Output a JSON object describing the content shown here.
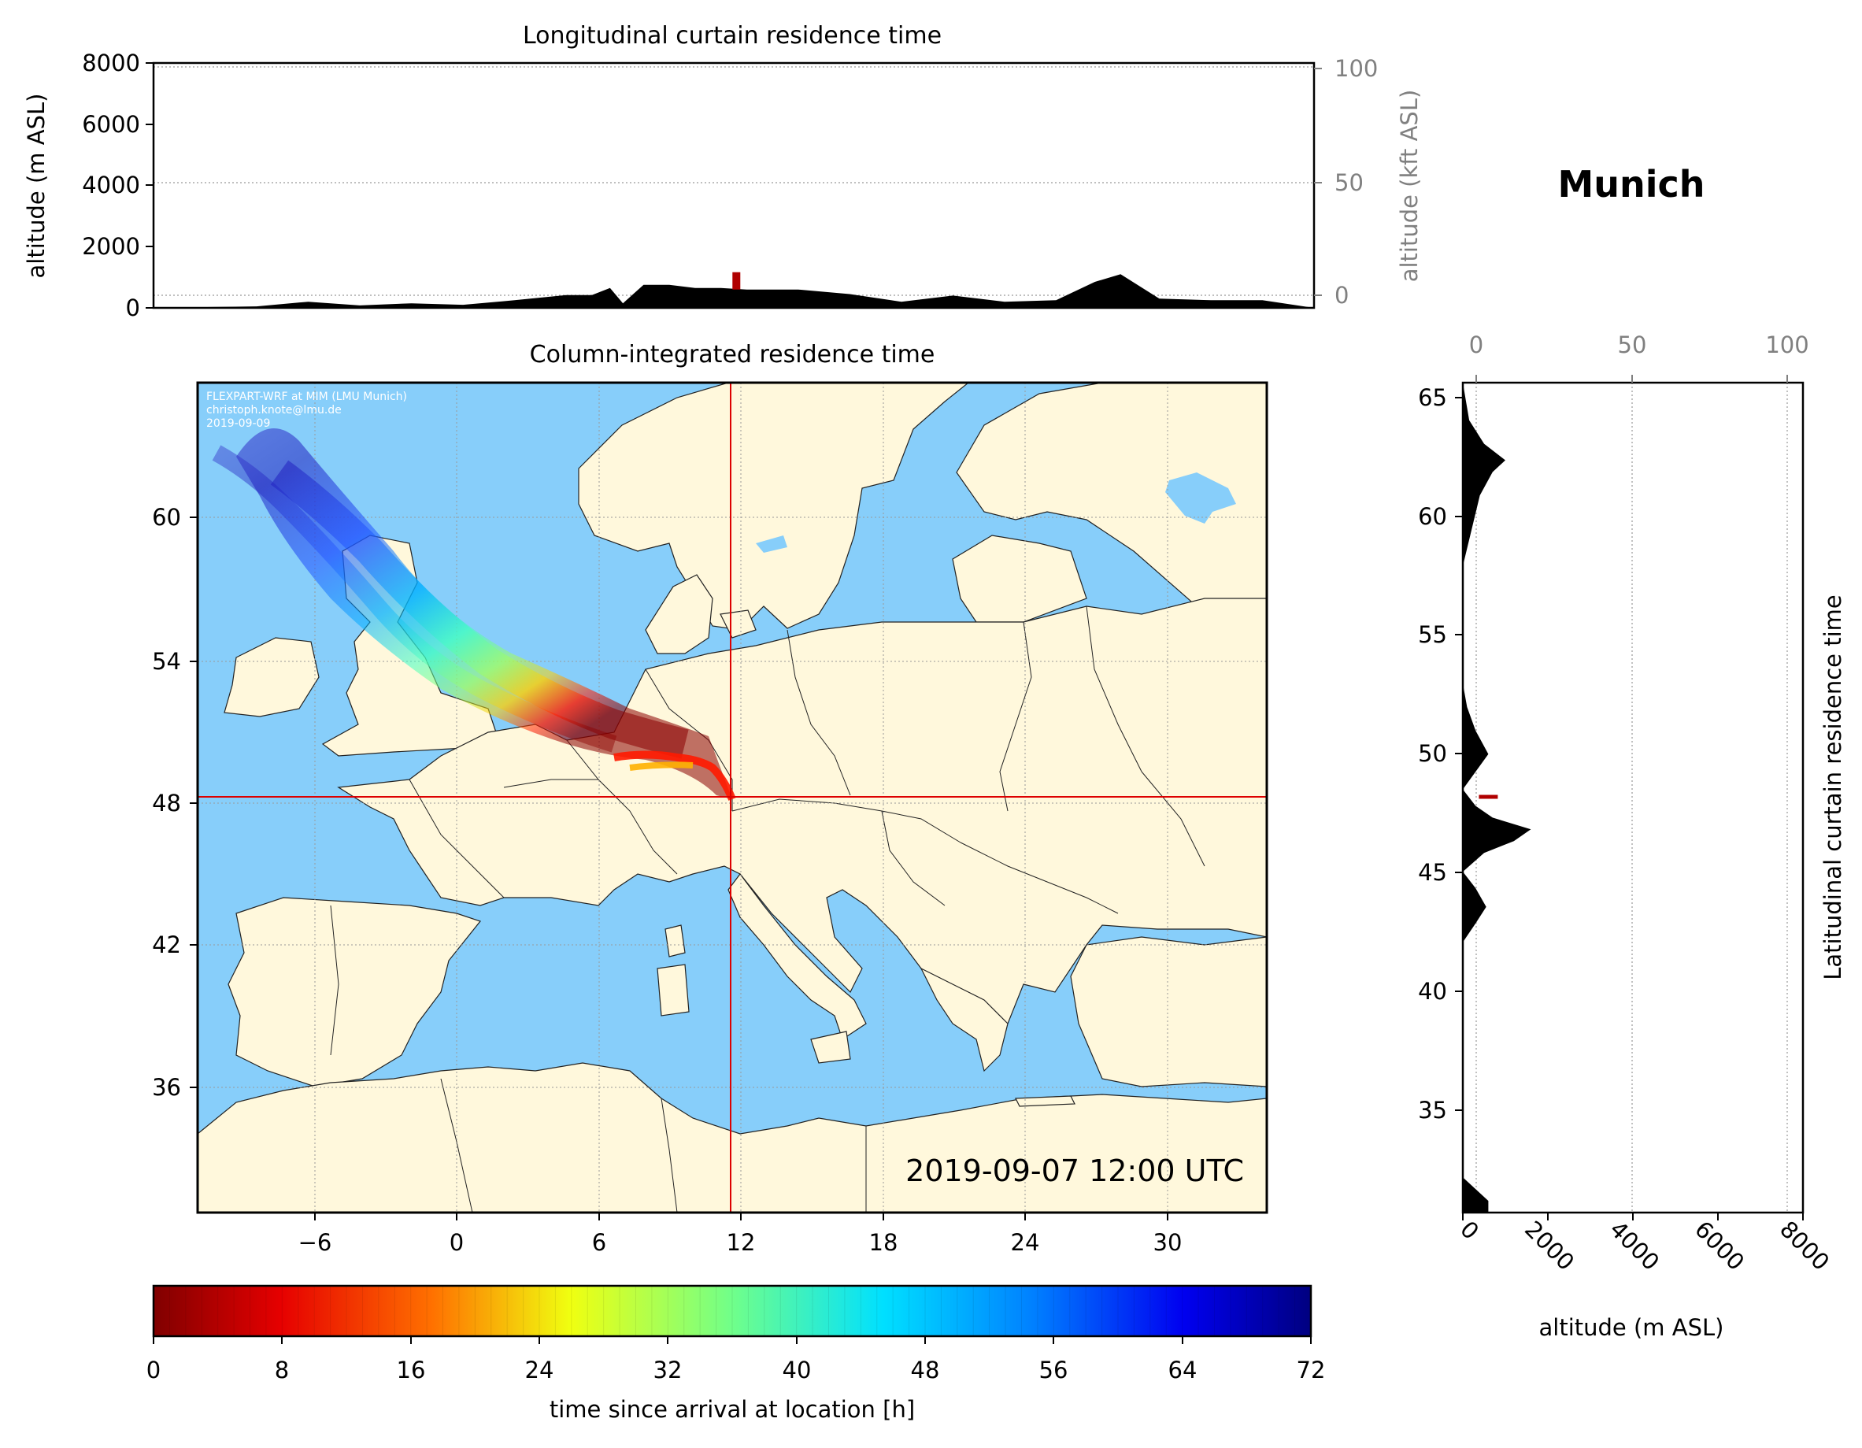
{
  "station": {
    "name": "Munich"
  },
  "colors": {
    "sea": "#87CEFA",
    "land": "#FFF8DC",
    "terrain": "#000000",
    "marker": "#DD0000",
    "grid": "#999999",
    "axis_right": "#808080"
  },
  "panels": {
    "top": {
      "title": "Longitudinal curtain residence time",
      "ylabel": "altitude (m ASL)",
      "ylabel_right": "altitude (kft ASL)",
      "yticks": [
        "0",
        "2000",
        "4000",
        "6000",
        "8000"
      ],
      "yticks_right": [
        "0",
        "50",
        "100"
      ]
    },
    "map": {
      "title": "Column-integrated residence time",
      "xticks": [
        "−6",
        "0",
        "6",
        "12",
        "18",
        "24",
        "30"
      ],
      "yticks": [
        "36",
        "42",
        "48",
        "54",
        "60"
      ],
      "credit_lines": [
        "FLEXPART-WRF at MIM (LMU Munich)",
        "christoph.knote@lmu.de",
        "2019-09-09"
      ],
      "timestamp": "2019-09-07 12:00 UTC"
    },
    "side": {
      "ylabel_right": "Latitudinal curtain residence time",
      "xlabel": "altitude (m ASL)",
      "yticks": [
        "35",
        "40",
        "45",
        "50",
        "55",
        "60",
        "65"
      ],
      "xticks_top": [
        "0",
        "50",
        "100"
      ],
      "xticks_bottom": [
        "0",
        "2000",
        "4000",
        "6000",
        "8000"
      ]
    },
    "colorbar": {
      "label": "time since arrival at location [h]",
      "ticks": [
        "0",
        "8",
        "16",
        "24",
        "32",
        "40",
        "48",
        "56",
        "64",
        "72"
      ],
      "colormap": "jet_r"
    }
  },
  "chart_data": [
    {
      "type": "area",
      "title": "Longitudinal curtain residence time",
      "xlabel": "",
      "ylabel": "altitude (m ASL)",
      "ylim": [
        0,
        8000
      ],
      "secondary_ylabel": "altitude (kft ASL)",
      "secondary_ylim": [
        0,
        100
      ],
      "grid": true,
      "series": [
        {
          "x": [
            -11,
            -7,
            -5,
            -3,
            -1,
            1,
            3,
            5,
            6,
            6.7,
            7.2,
            8,
            9,
            10,
            11,
            12,
            14,
            16,
            18,
            20,
            22,
            24,
            25.5,
            26.5,
            28,
            30,
            32,
            34
          ],
          "y": [
            0,
            50,
            200,
            80,
            150,
            100,
            250,
            420,
            420,
            650,
            150,
            750,
            750,
            650,
            650,
            600,
            600,
            450,
            200,
            400,
            200,
            250,
            850,
            1100,
            300,
            250,
            250,
            0
          ]
        }
      ],
      "markers": [
        {
          "x": 11.6,
          "y": 600
        }
      ]
    },
    {
      "type": "heatmap",
      "title": "Column-integrated residence time",
      "xlim": [
        -11,
        34
      ],
      "ylim": [
        30,
        65
      ],
      "xticks": [
        -6,
        0,
        6,
        12,
        18,
        24,
        30
      ],
      "yticks": [
        36,
        42,
        48,
        54,
        60
      ],
      "location": {
        "lon": 11.6,
        "lat": 48.1
      },
      "colorbar": {
        "label": "time since arrival at location [h]",
        "range": [
          0,
          72
        ],
        "ticks": [
          0,
          8,
          16,
          24,
          32,
          40,
          48,
          56,
          64,
          72
        ]
      },
      "plume_track": [
        {
          "lon": 11.6,
          "lat": 48.1,
          "hours": 0
        },
        {
          "lon": 10.8,
          "lat": 49.0,
          "hours": 4
        },
        {
          "lon": 9.5,
          "lat": 49.7,
          "hours": 8
        },
        {
          "lon": 8.0,
          "lat": 49.7,
          "hours": 14
        },
        {
          "lon": 7.0,
          "lat": 50.3,
          "hours": 22
        },
        {
          "lon": 5.5,
          "lat": 51.3,
          "hours": 30
        },
        {
          "lon": 3.0,
          "lat": 52.3,
          "hours": 40
        },
        {
          "lon": 0.0,
          "lat": 54.5,
          "hours": 50
        },
        {
          "lon": -3.0,
          "lat": 57.5,
          "hours": 58
        },
        {
          "lon": -6.0,
          "lat": 60.5,
          "hours": 66
        },
        {
          "lon": -8.5,
          "lat": 63.5,
          "hours": 72
        }
      ]
    },
    {
      "type": "area",
      "title": "Latitudinal curtain residence time",
      "xlabel": "altitude (m ASL)",
      "xlim": [
        0,
        8000
      ],
      "secondary_xlim": [
        0,
        100
      ],
      "ylim": [
        30.5,
        65.8
      ],
      "grid": true,
      "series": [
        {
          "y": [
            30.5,
            31,
            32,
            33,
            35,
            38,
            42,
            42.8,
            43.5,
            44.3,
            45,
            45.8,
            46.3,
            46.8,
            47.3,
            47.8,
            48.5,
            50,
            51,
            52,
            53,
            56,
            58,
            59.5,
            61,
            62,
            62.5,
            63.2,
            64.2,
            65.8
          ],
          "x": [
            600,
            600,
            0,
            0,
            0,
            0,
            0,
            300,
            550,
            300,
            0,
            500,
            1200,
            1600,
            700,
            300,
            0,
            600,
            300,
            100,
            0,
            0,
            0,
            200,
            400,
            700,
            1000,
            500,
            150,
            0
          ]
        }
      ],
      "markers": [
        {
          "x": 600,
          "y": 48.2
        }
      ]
    }
  ]
}
